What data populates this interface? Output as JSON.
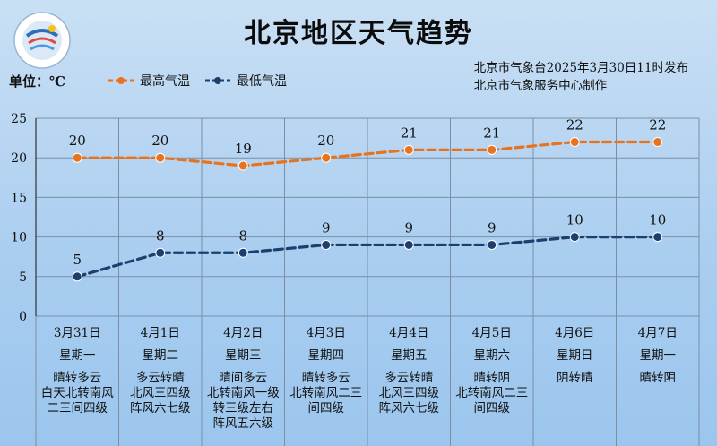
{
  "page": {
    "title": "北京地区天气趋势",
    "unit_label": "单位：℃",
    "publisher_line1": "北京市气象台2025年3月30日11时发布",
    "publisher_line2": "北京市气象服务中心制作"
  },
  "colors": {
    "high": "#e8731f",
    "low": "#1d3f6e",
    "grid": "#7c8ea3"
  },
  "chart_data": {
    "type": "line",
    "x": [
      "3月31日",
      "4月1日",
      "4月2日",
      "4月3日",
      "4月4日",
      "4月5日",
      "4月6日",
      "4月7日"
    ],
    "weekdays": [
      "星期一",
      "星期二",
      "星期三",
      "星期四",
      "星期五",
      "星期六",
      "星期日",
      "星期一"
    ],
    "weather": [
      [
        "晴转多云",
        "白天北转南风",
        "二三间四级"
      ],
      [
        "多云转晴",
        "北风三四级",
        "阵风六七级"
      ],
      [
        "晴间多云",
        "北转南风一级",
        "转三级左右",
        "阵风五六级"
      ],
      [
        "晴转多云",
        "北转南风二三",
        "间四级"
      ],
      [
        "多云转晴",
        "北风三四级",
        "阵风六七级"
      ],
      [
        "晴转阴",
        "北转南风二三",
        "间四级"
      ],
      [
        "阴转晴"
      ],
      [
        "晴转阴"
      ]
    ],
    "series": [
      {
        "name": "最高气温",
        "values": [
          20,
          20,
          19,
          20,
          21,
          21,
          22,
          22
        ]
      },
      {
        "name": "最低气温",
        "values": [
          5,
          8,
          8,
          9,
          9,
          9,
          10,
          10
        ]
      }
    ],
    "ylim": [
      0,
      25
    ],
    "yticks": [
      "0",
      "5",
      "10",
      "15",
      "20",
      "25"
    ]
  }
}
